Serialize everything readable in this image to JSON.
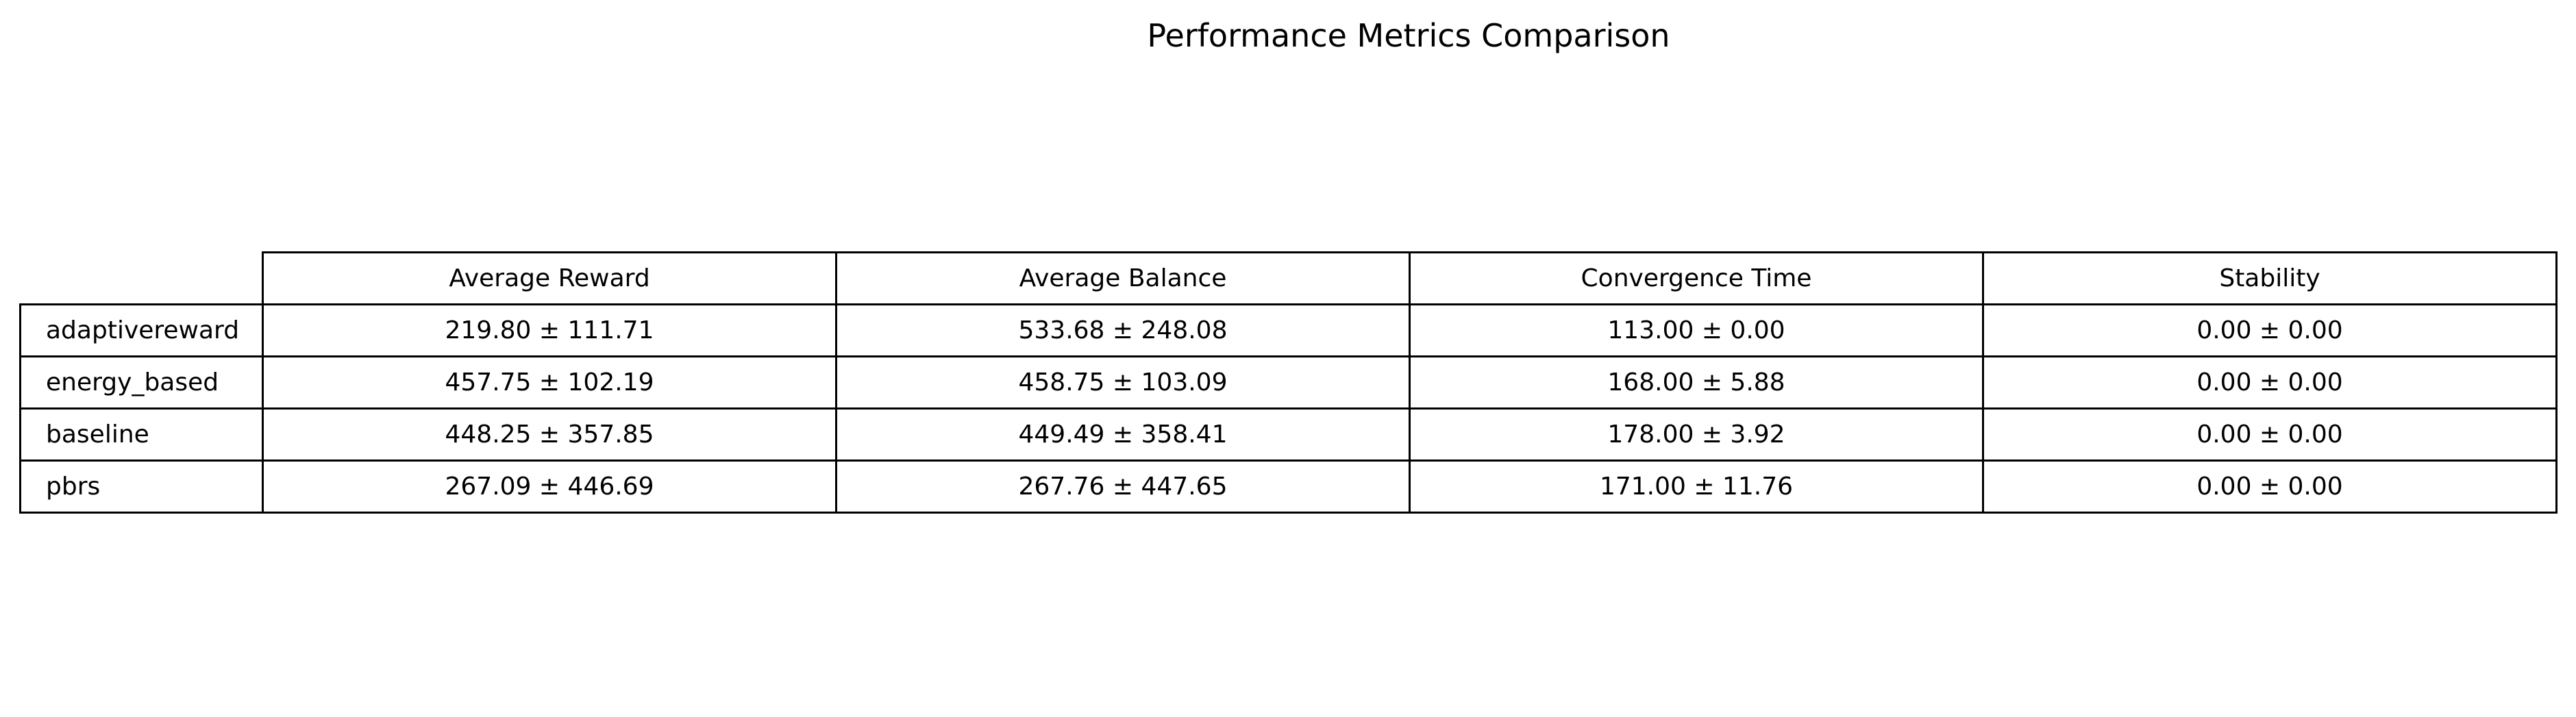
{
  "chart_data": {
    "type": "table",
    "title": "Performance Metrics Comparison",
    "columns": [
      "Average Reward",
      "Average Balance",
      "Convergence Time",
      "Stability"
    ],
    "rows": [
      {
        "label": "adaptivereward",
        "cells": [
          "219.80 ± 111.71",
          "533.68 ± 248.08",
          "113.00 ± 0.00",
          "0.00 ± 0.00"
        ]
      },
      {
        "label": "energy_based",
        "cells": [
          "457.75 ± 102.19",
          "458.75 ± 103.09",
          "168.00 ± 5.88",
          "0.00 ± 0.00"
        ]
      },
      {
        "label": "baseline",
        "cells": [
          "448.25 ± 357.85",
          "449.49 ± 358.41",
          "178.00 ± 3.92",
          "0.00 ± 0.00"
        ]
      },
      {
        "label": "pbrs",
        "cells": [
          "267.09 ± 446.69",
          "267.76 ± 447.65",
          "171.00 ± 11.76",
          "0.00 ± 0.00"
        ]
      }
    ],
    "text_color": "#000000",
    "border_color": "#000000",
    "background": "#ffffff"
  }
}
